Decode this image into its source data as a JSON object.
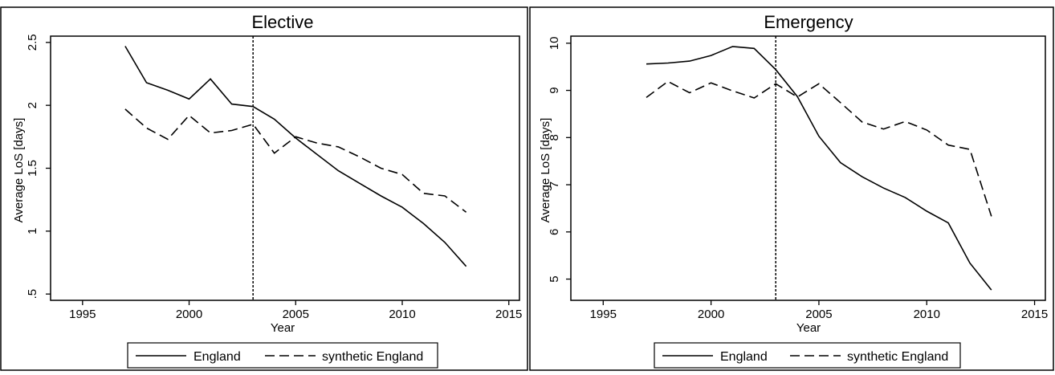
{
  "chart_data": [
    {
      "type": "line",
      "title": "Elective",
      "xlabel": "Year",
      "ylabel": "Average LoS [days]",
      "xlim": [
        1993.5,
        2015.5
      ],
      "ylim": [
        0.45,
        2.55
      ],
      "x_ticks": [
        1995,
        2000,
        2005,
        2010,
        2015
      ],
      "x_tick_labels": [
        "1995",
        "2000",
        "2005",
        "2010",
        "2015"
      ],
      "y_ticks": [
        0.5,
        1,
        1.5,
        2,
        2.5
      ],
      "y_tick_labels": [
        ".5",
        "1",
        "1.5",
        "2",
        "2.5"
      ],
      "vline_x": 2003,
      "x": [
        1997,
        1998,
        1999,
        2000,
        2001,
        2002,
        2003,
        2004,
        2005,
        2006,
        2007,
        2008,
        2009,
        2010,
        2011,
        2012,
        2013
      ],
      "series": [
        {
          "name": "England",
          "style": "solid",
          "values": [
            2.47,
            2.18,
            2.12,
            2.05,
            2.21,
            2.01,
            1.99,
            1.89,
            1.74,
            1.61,
            1.48,
            1.38,
            1.28,
            1.19,
            1.06,
            0.91,
            0.72
          ]
        },
        {
          "name": "synthetic England",
          "style": "dashed",
          "values": [
            1.97,
            1.82,
            1.73,
            1.92,
            1.78,
            1.8,
            1.85,
            1.62,
            1.75,
            1.7,
            1.67,
            1.59,
            1.5,
            1.45,
            1.3,
            1.28,
            1.15
          ]
        }
      ],
      "legend_position": "bottom"
    },
    {
      "type": "line",
      "title": "Emergency",
      "xlabel": "Year",
      "ylabel": "Average LoS [days]",
      "xlim": [
        1993.5,
        2015.5
      ],
      "ylim": [
        4.55,
        10.15
      ],
      "x_ticks": [
        1995,
        2000,
        2005,
        2010,
        2015
      ],
      "x_tick_labels": [
        "1995",
        "2000",
        "2005",
        "2010",
        "2015"
      ],
      "y_ticks": [
        5,
        6,
        7,
        8,
        9,
        10
      ],
      "y_tick_labels": [
        "5",
        "6",
        "7",
        "8",
        "9",
        "10"
      ],
      "vline_x": 2003,
      "x": [
        1997,
        1998,
        1999,
        2000,
        2001,
        2002,
        2003,
        2004,
        2005,
        2006,
        2007,
        2008,
        2009,
        2010,
        2011,
        2012,
        2013
      ],
      "series": [
        {
          "name": "England",
          "style": "solid",
          "values": [
            9.56,
            9.58,
            9.62,
            9.74,
            9.93,
            9.89,
            9.44,
            8.87,
            8.03,
            7.47,
            7.17,
            6.93,
            6.73,
            6.44,
            6.19,
            5.34,
            4.77
          ]
        },
        {
          "name": "synthetic England",
          "style": "dashed",
          "values": [
            8.85,
            9.19,
            8.95,
            9.16,
            8.99,
            8.84,
            9.14,
            8.86,
            9.14,
            8.74,
            8.33,
            8.18,
            8.34,
            8.16,
            7.84,
            7.75,
            6.33
          ]
        }
      ],
      "legend_position": "bottom"
    }
  ]
}
